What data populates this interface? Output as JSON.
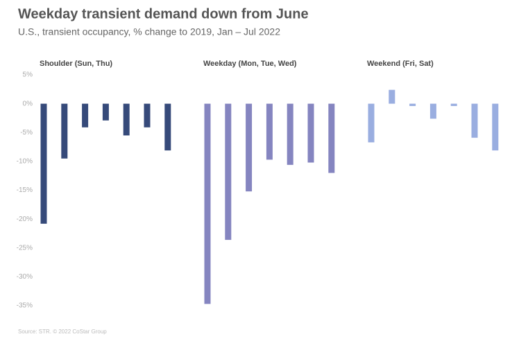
{
  "title": "Weekday transient demand down from June",
  "subtitle": "U.S., transient occupancy, % change to 2019, Jan – Jul 2022",
  "source": "Source: STR. © 2022 CoStar Group",
  "chart_data": [
    {
      "type": "bar",
      "title": "Shoulder (Sun, Thu)",
      "categories": [
        null,
        null,
        null,
        null,
        null,
        null,
        null
      ],
      "values": [
        -20.8,
        -9.5,
        -4.1,
        -2.9,
        -5.5,
        -4.1,
        -8.1
      ],
      "color": "#364a7a",
      "ylim": [
        -35,
        5
      ],
      "yticks": [
        {
          "value": 5,
          "label": "5%"
        },
        {
          "value": 0,
          "label": "0%"
        },
        {
          "value": -5,
          "label": "-5%"
        },
        {
          "value": -10,
          "label": "-10%"
        },
        {
          "value": -15,
          "label": "-15%"
        },
        {
          "value": -20,
          "label": "-20%"
        },
        {
          "value": -25,
          "label": "-25%"
        },
        {
          "value": -30,
          "label": "-30%"
        },
        {
          "value": -35,
          "label": "-35%"
        }
      ],
      "grid": false
    },
    {
      "type": "bar",
      "title": "Weekday (Mon, Tue, Wed)",
      "categories": [
        null,
        null,
        null,
        null,
        null,
        null,
        null
      ],
      "values": [
        -34.7,
        -23.6,
        -15.2,
        -9.7,
        -10.6,
        -10.2,
        -12.0
      ],
      "color": "#8585c0",
      "ylim": [
        -35,
        5
      ],
      "grid": false
    },
    {
      "type": "bar",
      "title": "Weekend (Fri, Sat)",
      "categories": [
        null,
        null,
        null,
        null,
        null,
        null,
        null
      ],
      "values": [
        -6.7,
        2.4,
        -0.4,
        -2.6,
        -0.4,
        -5.9,
        -8.1
      ],
      "color": "#9aaee0",
      "ylim": [
        -35,
        5
      ],
      "grid": false
    }
  ]
}
